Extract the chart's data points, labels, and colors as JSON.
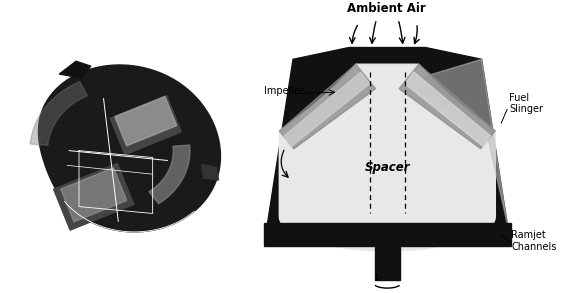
{
  "bg_color": "#ffffff",
  "fig_width": 5.65,
  "fig_height": 2.93,
  "labels": {
    "ambient_air": "Ambient Air",
    "impeller": "Impeller",
    "fuel_slinger": "Fuel\nSlinger",
    "spacer": "Spacer",
    "ramjet_channels": "Ramjet\nChannels"
  },
  "label_fontsize": 7.0,
  "label_fontsize_large": 8.5
}
